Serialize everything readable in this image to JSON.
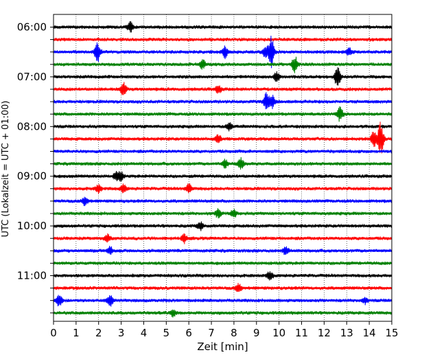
{
  "chart_data": {
    "type": "line",
    "xlabel": "Zeit  [min]",
    "ylabel": "UTC (Lokalzeit = UTC + 01:00)",
    "xlim": [
      0,
      15
    ],
    "x_ticks": [
      0,
      1,
      2,
      3,
      4,
      5,
      6,
      7,
      8,
      9,
      10,
      11,
      12,
      13,
      14,
      15
    ],
    "y_tick_labels": [
      "06:00",
      "07:00",
      "08:00",
      "09:00",
      "10:00",
      "11:00"
    ],
    "grid": "vertical dotted",
    "trace_interval_min": 15,
    "trace_colors": [
      "#000000",
      "#ff0000",
      "#0000ff",
      "#008000"
    ],
    "traces": [
      {
        "start": "06:00",
        "events": [
          {
            "t": 3.4,
            "amp": 0.5
          }
        ]
      },
      {
        "start": "06:15",
        "events": []
      },
      {
        "start": "06:30",
        "events": [
          {
            "t": 1.95,
            "amp": 1.0
          },
          {
            "t": 7.6,
            "amp": 0.6
          },
          {
            "t": 9.4,
            "amp": 0.5
          },
          {
            "t": 9.65,
            "amp": 1.6
          },
          {
            "t": 13.1,
            "amp": 0.4
          }
        ]
      },
      {
        "start": "06:45",
        "events": [
          {
            "t": 6.6,
            "amp": 0.5
          },
          {
            "t": 10.7,
            "amp": 0.8
          }
        ]
      },
      {
        "start": "07:00",
        "events": [
          {
            "t": 9.9,
            "amp": 0.5
          },
          {
            "t": 12.6,
            "amp": 1.2
          }
        ]
      },
      {
        "start": "07:15",
        "events": [
          {
            "t": 3.1,
            "amp": 0.7
          },
          {
            "t": 7.3,
            "amp": 0.4
          }
        ]
      },
      {
        "start": "07:30",
        "events": [
          {
            "t": 9.45,
            "amp": 0.9
          },
          {
            "t": 9.7,
            "amp": 0.6
          }
        ]
      },
      {
        "start": "07:45",
        "events": [
          {
            "t": 12.7,
            "amp": 0.7
          }
        ]
      },
      {
        "start": "08:00",
        "events": [
          {
            "t": 7.8,
            "amp": 0.4
          }
        ]
      },
      {
        "start": "08:15",
        "events": [
          {
            "t": 7.3,
            "amp": 0.4
          },
          {
            "t": 14.2,
            "amp": 0.7
          },
          {
            "t": 14.5,
            "amp": 1.7
          }
        ]
      },
      {
        "start": "08:30",
        "events": []
      },
      {
        "start": "08:45",
        "events": [
          {
            "t": 8.3,
            "amp": 0.6
          },
          {
            "t": 7.6,
            "amp": 0.4
          }
        ]
      },
      {
        "start": "09:00",
        "events": [
          {
            "t": 2.8,
            "amp": 0.5
          },
          {
            "t": 3.0,
            "amp": 0.4
          }
        ]
      },
      {
        "start": "09:15",
        "events": [
          {
            "t": 2.0,
            "amp": 0.4
          },
          {
            "t": 3.1,
            "amp": 0.4
          },
          {
            "t": 6.0,
            "amp": 0.5
          }
        ]
      },
      {
        "start": "09:30",
        "events": [
          {
            "t": 1.4,
            "amp": 0.4
          }
        ]
      },
      {
        "start": "09:45",
        "events": [
          {
            "t": 7.3,
            "amp": 0.4
          },
          {
            "t": 8.0,
            "amp": 0.4
          }
        ]
      },
      {
        "start": "10:00",
        "events": [
          {
            "t": 6.5,
            "amp": 0.4
          }
        ]
      },
      {
        "start": "10:15",
        "events": [
          {
            "t": 2.4,
            "amp": 0.4
          },
          {
            "t": 5.8,
            "amp": 0.4
          }
        ]
      },
      {
        "start": "10:30",
        "events": [
          {
            "t": 2.5,
            "amp": 0.4
          },
          {
            "t": 10.3,
            "amp": 0.4
          }
        ]
      },
      {
        "start": "10:45",
        "events": []
      },
      {
        "start": "11:00",
        "events": [
          {
            "t": 9.6,
            "amp": 0.4
          }
        ]
      },
      {
        "start": "11:15",
        "events": [
          {
            "t": 8.2,
            "amp": 0.4
          }
        ]
      },
      {
        "start": "11:30",
        "events": [
          {
            "t": 0.25,
            "amp": 0.6
          },
          {
            "t": 2.5,
            "amp": 0.6
          },
          {
            "t": 13.8,
            "amp": 0.3
          }
        ]
      },
      {
        "start": "11:45",
        "events": [
          {
            "t": 5.3,
            "amp": 0.3
          }
        ]
      }
    ]
  }
}
